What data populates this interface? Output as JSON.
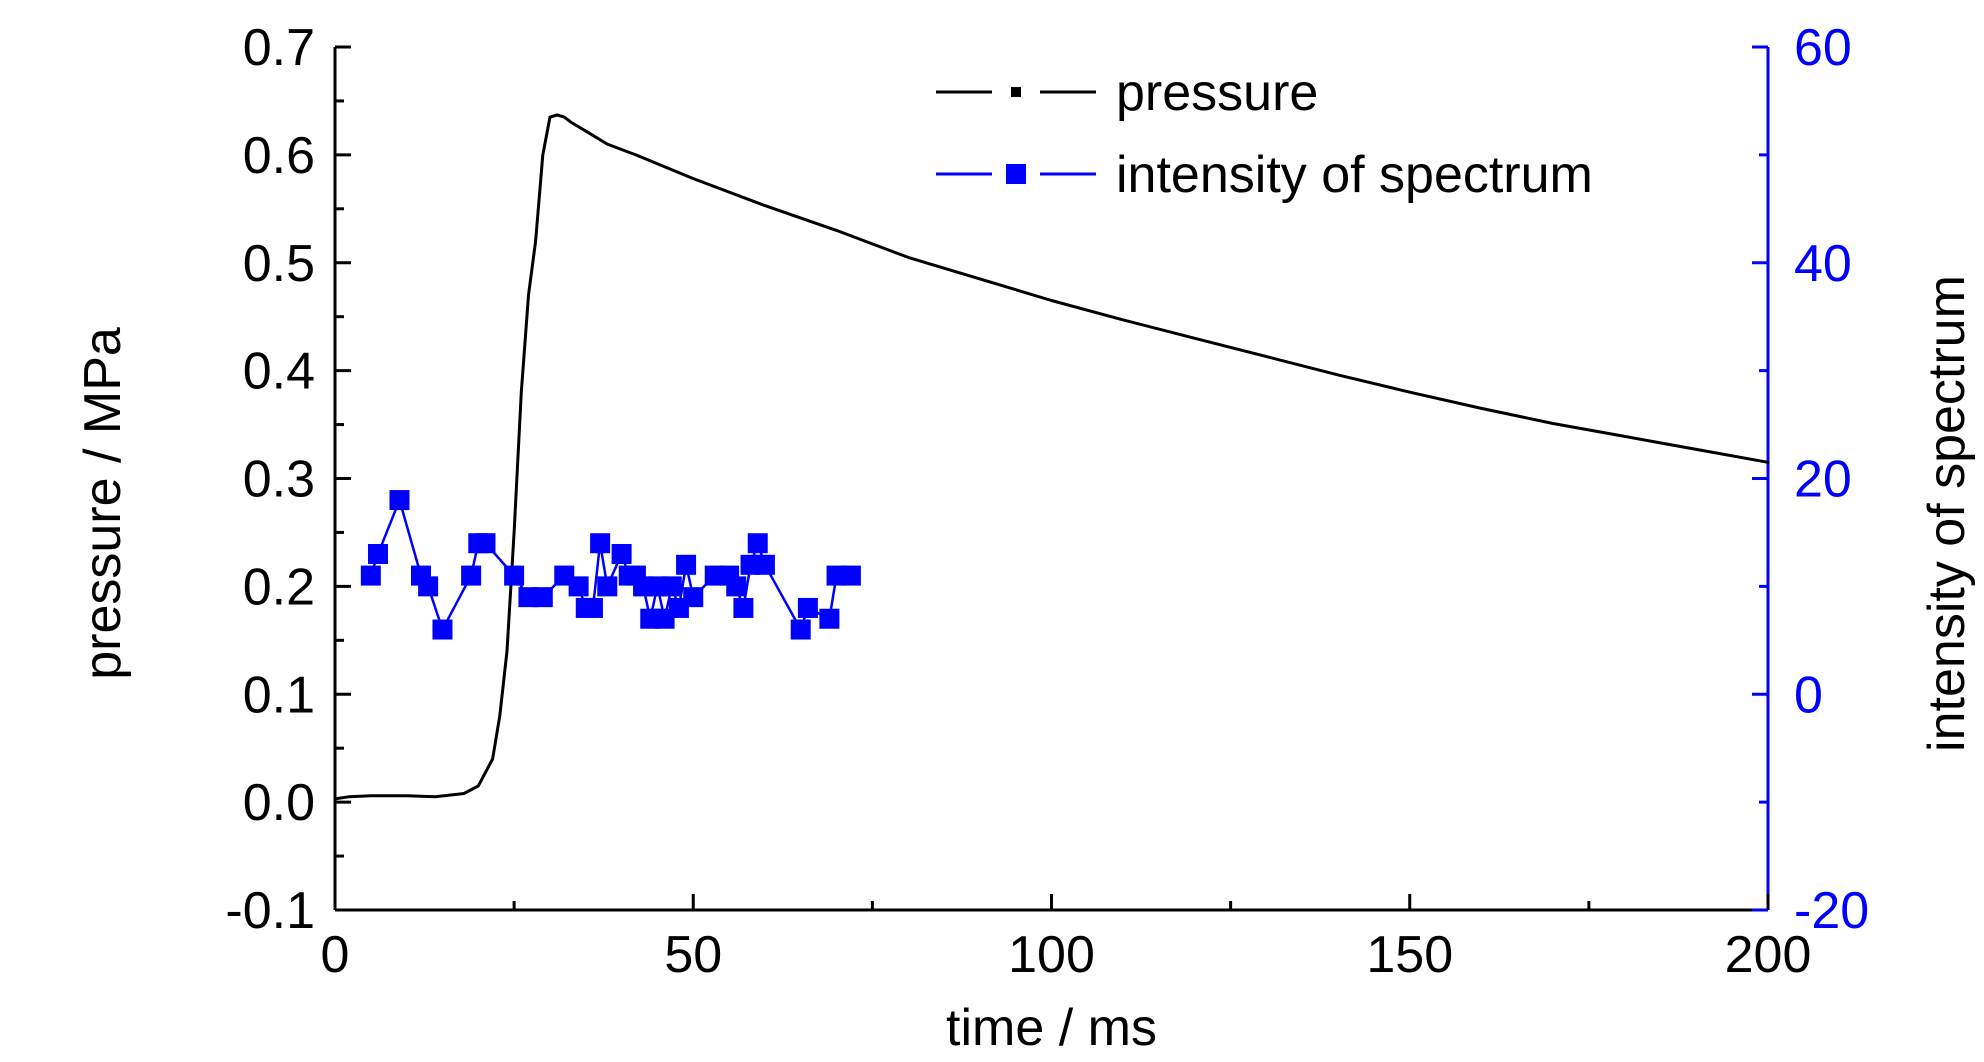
{
  "colors": {
    "left_axis": "#000000",
    "right_axis": "#0000ff",
    "pressure": "#000000",
    "intensity": "#0000ff",
    "background": "#ffffff"
  },
  "chart_data": {
    "type": "line",
    "title": "",
    "xlabel": "time / ms",
    "ylabel": "pressure / MPa",
    "y2label": "intensity of spectrum",
    "xlim": [
      0,
      200
    ],
    "ylim": [
      -0.1,
      0.7
    ],
    "y2lim": [
      -20,
      60
    ],
    "x_ticks": [
      "0",
      "50",
      "100",
      "150",
      "200"
    ],
    "x_tick_values": [
      0,
      50,
      100,
      150,
      200
    ],
    "y_ticks": [
      "-0.1",
      "0.0",
      "0.1",
      "0.2",
      "0.3",
      "0.4",
      "0.5",
      "0.6",
      "0.7"
    ],
    "y_tick_values": [
      -0.1,
      0.0,
      0.1,
      0.2,
      0.3,
      0.4,
      0.5,
      0.6,
      0.7
    ],
    "y2_ticks": [
      "-20",
      "0",
      "20",
      "40",
      "60"
    ],
    "y2_tick_values": [
      -20,
      0,
      20,
      40,
      60
    ],
    "grid": false,
    "legend_position": "top-right",
    "series": [
      {
        "name": "pressure",
        "axis": "left",
        "style": "line",
        "x": [
          0,
          2,
          5,
          10,
          14,
          18,
          20,
          22,
          23,
          24,
          25,
          26,
          27,
          28,
          29,
          30,
          31,
          32,
          33,
          35,
          38,
          42,
          50,
          60,
          70,
          80,
          90,
          100,
          110,
          120,
          130,
          140,
          150,
          160,
          170,
          180,
          190,
          200
        ],
        "y": [
          0.003,
          0.005,
          0.006,
          0.006,
          0.005,
          0.008,
          0.015,
          0.04,
          0.08,
          0.14,
          0.25,
          0.38,
          0.47,
          0.52,
          0.6,
          0.635,
          0.637,
          0.635,
          0.63,
          0.622,
          0.61,
          0.6,
          0.578,
          0.553,
          0.53,
          0.505,
          0.485,
          0.465,
          0.447,
          0.43,
          0.413,
          0.396,
          0.38,
          0.365,
          0.351,
          0.339,
          0.327,
          0.315
        ]
      },
      {
        "name": "intensity of spectrum",
        "axis": "right",
        "style": "line-markers",
        "x": [
          5,
          6,
          9,
          12,
          13,
          15,
          19,
          20,
          21,
          25,
          27,
          29,
          32,
          34,
          35,
          36,
          37,
          38,
          40,
          41,
          42,
          43,
          44,
          45,
          46,
          47,
          48,
          49,
          50,
          53,
          55,
          56,
          57,
          58,
          59,
          60,
          65,
          66,
          69,
          70,
          72
        ],
        "y": [
          11,
          13,
          18,
          11,
          10,
          6,
          11,
          14,
          14,
          11,
          9,
          9,
          11,
          10,
          8,
          8,
          14,
          10,
          13,
          11,
          11,
          10,
          7,
          10,
          7,
          10,
          8,
          12,
          9,
          11,
          11,
          10,
          8,
          12,
          14,
          12,
          6,
          8,
          7,
          11,
          11
        ]
      }
    ]
  }
}
